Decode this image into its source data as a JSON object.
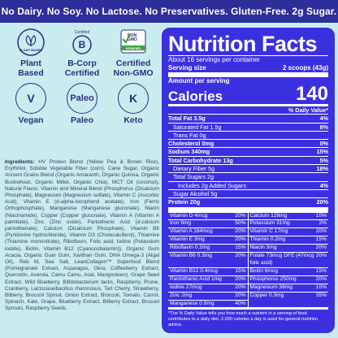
{
  "banner": "No Dairy.  No Soy.  No Lactose.  No Preservatives.  Gluten-Free.  2g Sugar.",
  "badges": {
    "row1": [
      {
        "icon": "plant-icon",
        "icon_text": "PLANT BASED",
        "label": "Plant Based"
      },
      {
        "icon": "bcorp-icon",
        "icon_text": "Certified",
        "label": "B-Corp Certified"
      },
      {
        "icon": "nongmo-icon",
        "icon_text": "NON GMO Project VERIFIED",
        "label": "Certified Non-GMO"
      }
    ],
    "row2": [
      {
        "icon": "vegan-icon",
        "icon_text": "V",
        "label": "Vegan"
      },
      {
        "icon": "paleo-icon",
        "icon_text": "Paleo",
        "label": "Paleo"
      },
      {
        "icon": "keto-icon",
        "icon_text": "K",
        "label": "Keto"
      }
    ]
  },
  "ingredients": {
    "heading": "Ingredients:",
    "text": "HV Protein Blend (Yellow Pea & Brown Rice), Erythritol, Soluble Vegetable Fiber (corn), Cane Sugar, Organic Ancient Grains Blend (Organic Amaranth, Organic Quinoa, Organic Buckwheat, Organic Millet, Organic Chia), MCT Oil (coconut), Natural Flavor, Vitamin and Mineral Blend (Phosphorus (Dicalcium Phosphate), Magnesium (Magnesium sulfate), Vitamin C (Ascorbic Acid), Vitamin E (d-alpha-tocopherol acetate), Iron (Ferric Orthophosphate), Manganese (Manganese gluconate), Niacin (Niacinamide), Copper (Copper gluconate), Vitamin A (Vitamin A palmitate), Zinc (Zinc oxide), Pantothenic Acid (d-calcium pantothenate), Calcium (Dicalcium Phosphate), Vitamin B6 (Pyridoxine hydrochloride), Vitamin D3 (Cholecalciferol), Thiamine (Thiamine mononitrate), Riboflavin, Folic acid, Iodine (Potassium iodide), Biotin, Vitamin B12 (Cyanocobalamin)), Organic Gum Acacia, Organic Guar Gum, Xanthan Gum, DHA Omega-3 (Algal Oil), Reb M, Sea Salt, LeanCollagen™ Superfood Blend (Pomegranate Extract, Asparagus, Okra, Coffeeberry Extract, Quercetin, Acerola, Camu Camu, Acai, Mangosteen), Grape Seed Extract, Wild Blueberry, Bifidobacterium lactis, Raspberry, Prune, Cranberry, Lactocaseibacillus rhamnosus, Tart Cherry, Strawberry, Bilberry, Broccoli Sprout, Onion Extract, Broccoli, Tomato, Carrot, Spinach, Kale, Grape, Blueberry Extract, Bilberry Extract, Brussel Sprouts, Raspberry Seeds."
  },
  "nutrition": {
    "title": "Nutrition Facts",
    "servings": "About 16 servings per container",
    "serving_size_label": "Serving size",
    "serving_size_value": "2 scoops (43g)",
    "amount_per_serving": "Amount per serving",
    "calories_label": "Calories",
    "calories_value": "140",
    "dv_header": "% Daily Value*",
    "rows": [
      {
        "label": "Total Fat 3.5g",
        "dv": "4%",
        "style": "bold",
        "indent": 0
      },
      {
        "label": "Saturated Fat 1.5g",
        "dv": "8%",
        "style": "",
        "indent": 1
      },
      {
        "label": "Trans Fat 0g",
        "dv": "",
        "style": "",
        "indent": 1
      },
      {
        "label": "Cholesterol 0mg",
        "dv": "0%",
        "style": "bold",
        "indent": 0
      },
      {
        "label": "Sodium 340mg",
        "dv": "15%",
        "style": "bold",
        "indent": 0
      },
      {
        "label": "Total Carbohydrate 13g",
        "dv": "5%",
        "style": "bold",
        "indent": 0
      },
      {
        "label": "Dietary Fiber 5g",
        "dv": "18%",
        "style": "",
        "indent": 1
      },
      {
        "label": "Total Sugars 2g",
        "dv": "",
        "style": "",
        "indent": 1
      },
      {
        "label": "Includes 2g Added Sugars",
        "dv": "4%",
        "style": "",
        "indent": 2
      },
      {
        "label": "Sugar Alcohol 5g",
        "dv": "",
        "style": "",
        "indent": 1
      },
      {
        "label": "Protein 20g",
        "dv": "20%",
        "style": "bold",
        "indent": 0
      }
    ],
    "vitamins": [
      {
        "label": "Vitamin D 4mcg",
        "dv": "20%"
      },
      {
        "label": "Calcium 128mg",
        "dv": "10%"
      },
      {
        "label": "Iron 9mg",
        "dv": "50%"
      },
      {
        "label": "Potassium 31mg",
        "dv": "2%"
      },
      {
        "label": "Vitamin A 164mcg",
        "dv": "20%"
      },
      {
        "label": "Vitamin C 17mg",
        "dv": "20%"
      },
      {
        "label": "Vitamin E 3mg",
        "dv": "20%"
      },
      {
        "label": "Thiamin 0.2mg",
        "dv": "15%"
      },
      {
        "label": "Riboflavin 0.2mg",
        "dv": "15%"
      },
      {
        "label": "Niacin 3mg",
        "dv": "20%"
      },
      {
        "label": "Vitamin B6 0.3mg",
        "dv": "20%"
      },
      {
        "label": "Folate 73mcg DFE (47mcg folic acid)",
        "dv": "20%"
      },
      {
        "label": "Vitamin B12 0.4mcg",
        "dv": "15%"
      },
      {
        "label": "Biotin 6mcg",
        "dv": "15%"
      },
      {
        "label": "Pantothenic Acid 1mg",
        "dv": "20%"
      },
      {
        "label": "Phosphorus 250mg",
        "dv": "20%"
      },
      {
        "label": "Iodine 27mcg",
        "dv": "20%"
      },
      {
        "label": "Magnesium 38mg",
        "dv": "10%"
      },
      {
        "label": "Zinc 2mg",
        "dv": "20%"
      },
      {
        "label": "Copper 0.3mg",
        "dv": "35%"
      },
      {
        "label": "Manganese 0.9mg",
        "dv": "40%"
      }
    ],
    "footnote": "*The % Daily Value tells you how much a nutrient in a serving of food contributes to a daily diet. 2,000 calories a day is used for general nutrition advice."
  }
}
